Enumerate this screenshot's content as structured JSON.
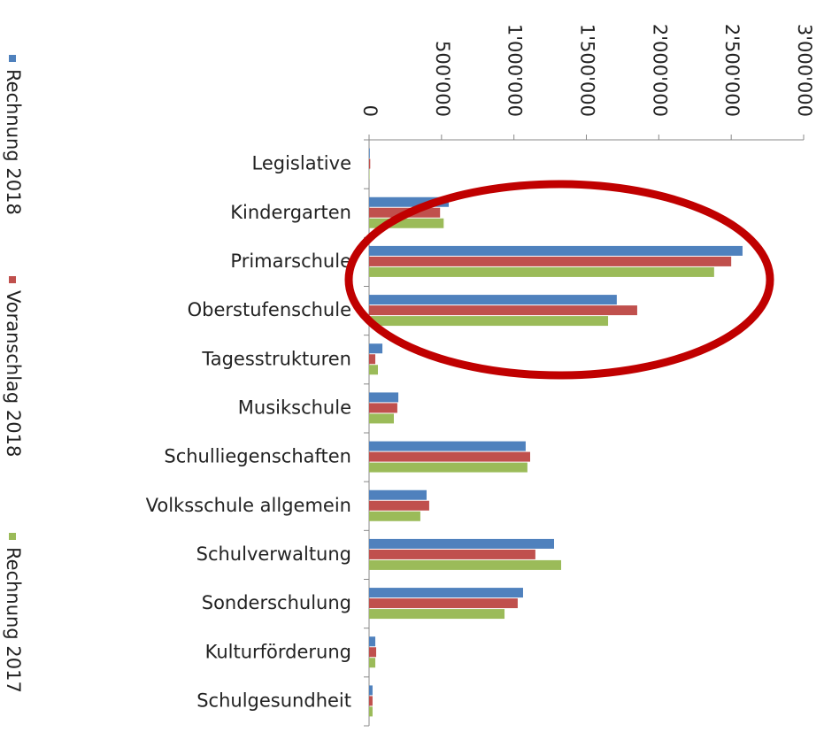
{
  "chart_data": {
    "type": "hbar",
    "categories": [
      "Legislative",
      "Kindergarten",
      "Primarschule",
      "Oberstufenschule",
      "Tagesstrukturen",
      "Musikschule",
      "Schulliegenschaften",
      "Volksschule allgemein",
      "Schulverwaltung",
      "Sonderschulung",
      "Kulturförderung",
      "Schulgesundheit"
    ],
    "series": [
      {
        "name": "Rechnung 2018",
        "color": "#4f81bd",
        "values": [
          5000,
          550000,
          2578000,
          1710000,
          92000,
          202000,
          1081000,
          397000,
          1277000,
          1063000,
          43000,
          24000
        ]
      },
      {
        "name": "Voranschlag 2018",
        "color": "#c0504d",
        "values": [
          8000,
          490000,
          2500000,
          1851000,
          43000,
          195000,
          1112000,
          415000,
          1148000,
          1026000,
          49000,
          24000
        ]
      },
      {
        "name": "Rechnung 2017",
        "color": "#9bbb59",
        "values": [
          3000,
          515000,
          2382000,
          1650000,
          61000,
          171000,
          1093000,
          354000,
          1326000,
          935000,
          43000,
          24000
        ]
      }
    ],
    "xlim": [
      0,
      3000000
    ],
    "xticks": [
      0,
      {
        "value": 500000,
        "label": "500'000"
      },
      {
        "value": 1000000,
        "label": "1'000'000"
      },
      {
        "value": 1500000,
        "label": "1'500'000"
      },
      {
        "value": 2000000,
        "label": "2'000'000"
      },
      {
        "value": 2500000,
        "label": "2'500'000"
      },
      {
        "value": 3000000,
        "label": "3'000'000"
      }
    ],
    "legend": "left"
  }
}
